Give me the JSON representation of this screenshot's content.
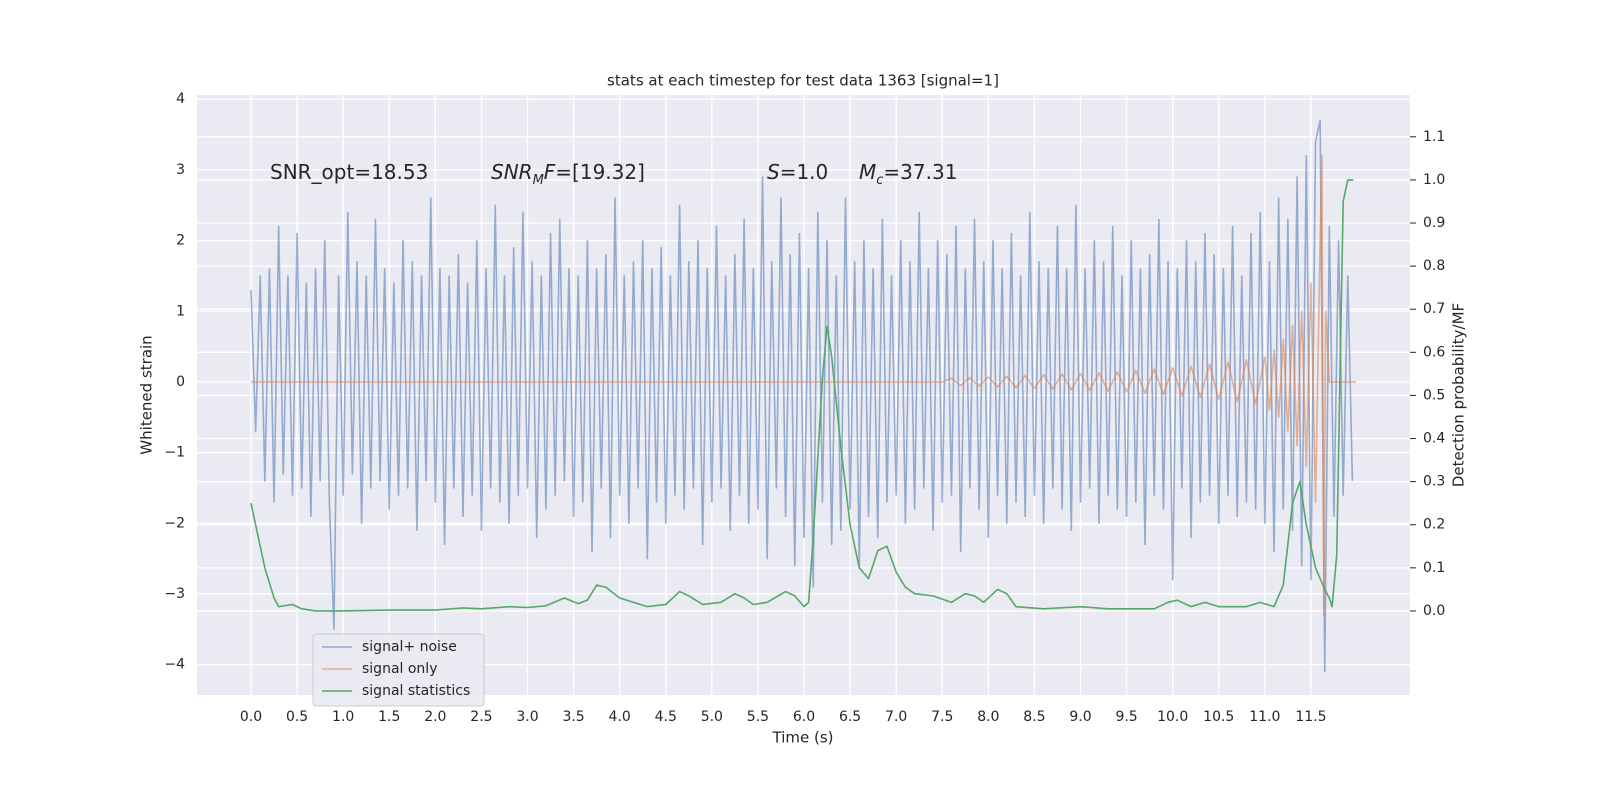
{
  "chart_data": {
    "type": "line",
    "title": "stats at each timestep for test data 1363 [signal=1]",
    "xlabel": "Time (s)",
    "ylabel": "Whitened strain",
    "y2label": "Detection probability/MF",
    "xlim": [
      -0.586,
      12.575
    ],
    "ylim": [
      -4.43,
      4.06
    ],
    "y2lim": [
      -0.195,
      1.197
    ],
    "grid": true,
    "legend": "lower left",
    "xticks": [
      {
        "value": 0,
        "label": "0.0"
      },
      0.5,
      {
        "value": 1,
        "label": "1.0"
      },
      1.5,
      {
        "value": 2,
        "label": "2.0"
      },
      2.5,
      {
        "value": 3,
        "label": "3.0"
      },
      3.5,
      {
        "value": 4,
        "label": "4.0"
      },
      4.5,
      {
        "value": 5,
        "label": "5.0"
      },
      5.5,
      {
        "value": 6,
        "label": "6.0"
      },
      6.5,
      {
        "value": 7,
        "label": "7.0"
      },
      7.5,
      {
        "value": 8,
        "label": "8.0"
      },
      8.5,
      {
        "value": 9,
        "label": "9.0"
      },
      9.5,
      {
        "value": 10,
        "label": "10.0"
      },
      10.5,
      {
        "value": 11,
        "label": "11.0"
      },
      11.5
    ],
    "yticks": [
      {
        "value": -4,
        "label": "−4"
      },
      {
        "value": -3,
        "label": "−3"
      },
      {
        "value": -2,
        "label": "−2"
      },
      {
        "value": -1,
        "label": "−1"
      },
      0,
      1,
      2,
      3,
      4
    ],
    "y2ticks": [
      {
        "value": 0,
        "label": "0.0"
      },
      0.1,
      0.2,
      0.3,
      0.4,
      0.5,
      0.6,
      0.7,
      0.8,
      0.9,
      {
        "value": 1,
        "label": "1.0"
      },
      1.1
    ],
    "annotations": [
      [
        {
          "text": "SNR_opt=18.53"
        }
      ],
      [
        {
          "text": "SNR",
          "italic": true
        },
        {
          "text": "M",
          "italic": true,
          "sub": true
        },
        {
          "text": "F",
          "italic": true
        },
        {
          "text": "=[19.32]"
        }
      ],
      [
        {
          "text": "S",
          "italic": true
        },
        {
          "text": "=1.0"
        }
      ],
      [
        {
          "text": "M",
          "italic": true
        },
        {
          "text": "c",
          "italic": true,
          "sub": true
        },
        {
          "text": "=37.31"
        }
      ]
    ],
    "series": [
      {
        "name": "signal+ noise",
        "color": "#4c72b0",
        "alpha": 0.55,
        "x": [
          0,
          0.05,
          0.1,
          0.15,
          0.2,
          0.25,
          0.3,
          0.35,
          0.4,
          0.45,
          0.5,
          0.55,
          0.6,
          0.65,
          0.7,
          0.75,
          0.8,
          0.85,
          0.9,
          0.95,
          1,
          1.05,
          1.1,
          1.15,
          1.2,
          1.25,
          1.3,
          1.35,
          1.4,
          1.45,
          1.5,
          1.55,
          1.6,
          1.65,
          1.7,
          1.75,
          1.8,
          1.85,
          1.9,
          1.95,
          2,
          2.05,
          2.1,
          2.15,
          2.2,
          2.25,
          2.3,
          2.35,
          2.4,
          2.45,
          2.5,
          2.55,
          2.6,
          2.65,
          2.7,
          2.75,
          2.8,
          2.85,
          2.9,
          2.95,
          3,
          3.05,
          3.1,
          3.15,
          3.2,
          3.25,
          3.3,
          3.35,
          3.4,
          3.45,
          3.5,
          3.55,
          3.6,
          3.65,
          3.7,
          3.75,
          3.8,
          3.85,
          3.9,
          3.95,
          4,
          4.05,
          4.1,
          4.15,
          4.2,
          4.25,
          4.3,
          4.35,
          4.4,
          4.45,
          4.5,
          4.55,
          4.6,
          4.65,
          4.7,
          4.75,
          4.8,
          4.85,
          4.9,
          4.95,
          5,
          5.05,
          5.1,
          5.15,
          5.2,
          5.25,
          5.3,
          5.35,
          5.4,
          5.45,
          5.5,
          5.55,
          5.6,
          5.65,
          5.7,
          5.75,
          5.8,
          5.85,
          5.9,
          5.95,
          6,
          6.05,
          6.1,
          6.15,
          6.2,
          6.25,
          6.3,
          6.35,
          6.4,
          6.45,
          6.5,
          6.55,
          6.6,
          6.65,
          6.7,
          6.75,
          6.8,
          6.85,
          6.9,
          6.95,
          7,
          7.05,
          7.1,
          7.15,
          7.2,
          7.25,
          7.3,
          7.35,
          7.4,
          7.45,
          7.5,
          7.55,
          7.6,
          7.65,
          7.7,
          7.75,
          7.8,
          7.85,
          7.9,
          7.95,
          8,
          8.05,
          8.1,
          8.15,
          8.2,
          8.25,
          8.3,
          8.35,
          8.4,
          8.45,
          8.5,
          8.55,
          8.6,
          8.65,
          8.7,
          8.75,
          8.8,
          8.85,
          8.9,
          8.95,
          9,
          9.05,
          9.1,
          9.15,
          9.2,
          9.25,
          9.3,
          9.35,
          9.4,
          9.45,
          9.5,
          9.55,
          9.6,
          9.65,
          9.7,
          9.75,
          9.8,
          9.85,
          9.9,
          9.95,
          10,
          10.05,
          10.1,
          10.15,
          10.2,
          10.25,
          10.3,
          10.35,
          10.4,
          10.45,
          10.5,
          10.55,
          10.6,
          10.65,
          10.7,
          10.75,
          10.8,
          10.85,
          10.9,
          10.95,
          11,
          11.05,
          11.1,
          11.15,
          11.2,
          11.25,
          11.3,
          11.35,
          11.4,
          11.45,
          11.5,
          11.55,
          11.6,
          11.65,
          11.7,
          11.75,
          11.8,
          11.85,
          11.9,
          11.95
        ],
        "values": [
          1.3,
          -0.7,
          1.5,
          -1.4,
          1.6,
          -1.7,
          2.2,
          -1.3,
          1.5,
          -1.6,
          2.1,
          -1.5,
          1.4,
          -1.9,
          1.6,
          -1.4,
          2.0,
          -1.7,
          -3.5,
          1.5,
          -1.6,
          2.4,
          -1.3,
          1.7,
          -2.0,
          1.5,
          -1.5,
          2.3,
          -1.4,
          1.6,
          -1.8,
          1.4,
          -1.6,
          2.0,
          -1.5,
          1.7,
          -2.1,
          1.5,
          -1.4,
          2.6,
          -1.7,
          1.6,
          -2.3,
          1.5,
          -1.5,
          1.8,
          -1.9,
          1.4,
          -1.6,
          2.0,
          -2.1,
          1.6,
          -1.5,
          2.5,
          -1.7,
          1.5,
          -2.0,
          1.9,
          -1.6,
          2.4,
          -1.5,
          1.7,
          -2.2,
          1.5,
          -1.8,
          2.1,
          -1.6,
          2.3,
          -1.4,
          1.6,
          -1.9,
          1.5,
          -1.7,
          2.0,
          -2.4,
          1.6,
          -1.5,
          1.8,
          -2.2,
          2.6,
          -1.6,
          1.5,
          -2.0,
          1.7,
          -1.5,
          2.0,
          -2.5,
          1.6,
          -1.7,
          1.9,
          -2.0,
          1.5,
          -1.6,
          2.5,
          -1.8,
          1.7,
          -1.5,
          2.0,
          -2.3,
          1.6,
          -1.7,
          2.2,
          -1.5,
          1.5,
          -2.1,
          1.8,
          -1.6,
          2.3,
          -2.0,
          1.6,
          -1.8,
          2.9,
          -2.5,
          1.7,
          -1.5,
          2.6,
          -1.9,
          1.8,
          -2.6,
          2.1,
          -2.2,
          1.6,
          -2.9,
          2.4,
          -1.7,
          2.0,
          -2.3,
          1.5,
          -2.1,
          2.6,
          -1.8,
          1.7,
          -2.6,
          2.0,
          -1.9,
          1.6,
          -2.2,
          2.3,
          -1.7,
          1.5,
          -1.6,
          2.0,
          -2.0,
          1.7,
          -1.8,
          2.4,
          -1.5,
          1.6,
          -2.1,
          2.0,
          -1.7,
          1.8,
          -1.6,
          2.2,
          -2.4,
          1.6,
          -1.5,
          2.3,
          -1.8,
          1.7,
          -2.2,
          2.0,
          -1.6,
          1.6,
          -2.0,
          2.1,
          -1.7,
          1.5,
          -1.9,
          2.4,
          -1.6,
          1.7,
          -2.0,
          1.6,
          -1.5,
          2.2,
          -1.8,
          1.6,
          -2.1,
          2.5,
          -1.7,
          1.6,
          -1.5,
          2.0,
          -2.0,
          1.7,
          -1.6,
          2.2,
          -1.8,
          1.5,
          -1.9,
          2.0,
          -1.7,
          1.6,
          -2.3,
          1.8,
          -1.6,
          2.3,
          -1.8,
          1.7,
          -2.8,
          1.6,
          -1.5,
          2.0,
          -2.2,
          1.7,
          -1.7,
          2.1,
          -1.6,
          1.8,
          -2.0,
          1.6,
          -1.6,
          2.2,
          -1.9,
          1.5,
          -1.7,
          2.1,
          -1.8,
          2.4,
          -2.0,
          1.7,
          -2.4,
          2.6,
          -1.8,
          2.3,
          -2.1,
          2.9,
          -2.6,
          3.2,
          -2.8,
          3.4,
          3.7,
          -4.1,
          2.2,
          -1.9,
          2.0,
          -1.6,
          1.5,
          -1.4
        ]
      },
      {
        "name": "signal only",
        "color": "#dd8452",
        "alpha": 0.6,
        "x": [
          0,
          7.5,
          7.6,
          7.7,
          7.8,
          7.9,
          8,
          8.1,
          8.2,
          8.3,
          8.4,
          8.5,
          8.6,
          8.7,
          8.8,
          8.9,
          9,
          9.1,
          9.2,
          9.3,
          9.4,
          9.5,
          9.6,
          9.7,
          9.8,
          9.9,
          10,
          10.1,
          10.2,
          10.3,
          10.4,
          10.5,
          10.6,
          10.7,
          10.8,
          10.9,
          11,
          11.05,
          11.1,
          11.15,
          11.2,
          11.25,
          11.3,
          11.35,
          11.4,
          11.45,
          11.5,
          11.55,
          11.6,
          11.62,
          11.64,
          11.66,
          11.7,
          11.99
        ],
        "values": [
          0,
          0,
          0.05,
          -0.05,
          0.06,
          -0.06,
          0.07,
          -0.07,
          0.08,
          -0.08,
          0.09,
          -0.09,
          0.1,
          -0.1,
          0.11,
          -0.11,
          0.12,
          -0.12,
          0.13,
          -0.13,
          0.14,
          -0.14,
          0.16,
          -0.16,
          0.18,
          -0.18,
          0.2,
          -0.2,
          0.22,
          -0.22,
          0.25,
          -0.25,
          0.28,
          -0.28,
          0.31,
          -0.31,
          0.35,
          -0.4,
          0.45,
          -0.5,
          0.6,
          -0.7,
          0.8,
          -0.9,
          1.0,
          -1.2,
          1.4,
          -1.7,
          2.0,
          3.2,
          -3.3,
          1.0,
          0,
          0
        ]
      },
      {
        "name": "signal statistics",
        "color": "#55a868",
        "alpha": 1,
        "axis": "y2",
        "x": [
          0,
          0.05,
          0.15,
          0.25,
          0.3,
          0.45,
          0.55,
          0.7,
          1,
          1.5,
          2,
          2.3,
          2.5,
          2.8,
          3,
          3.2,
          3.4,
          3.55,
          3.65,
          3.75,
          3.85,
          4,
          4.3,
          4.5,
          4.65,
          4.75,
          4.9,
          5.1,
          5.25,
          5.35,
          5.45,
          5.6,
          5.8,
          5.9,
          6,
          6.05,
          6.1,
          6.2,
          6.25,
          6.3,
          6.4,
          6.5,
          6.6,
          6.7,
          6.8,
          6.9,
          7,
          7.1,
          7.2,
          7.4,
          7.6,
          7.75,
          7.85,
          7.95,
          8.1,
          8.2,
          8.3,
          8.6,
          9,
          9.3,
          9.8,
          9.95,
          10.05,
          10.2,
          10.35,
          10.5,
          10.8,
          10.95,
          11.1,
          11.2,
          11.3,
          11.38,
          11.45,
          11.55,
          11.65,
          11.7,
          11.73,
          11.78,
          11.85,
          11.9,
          11.96
        ],
        "values": [
          0.25,
          0.2,
          0.1,
          0.03,
          0.01,
          0.015,
          0.005,
          0,
          0,
          0.002,
          0.002,
          0.007,
          0.005,
          0.01,
          0.008,
          0.012,
          0.03,
          0.017,
          0.025,
          0.06,
          0.055,
          0.03,
          0.01,
          0.015,
          0.045,
          0.035,
          0.015,
          0.02,
          0.04,
          0.03,
          0.015,
          0.02,
          0.045,
          0.035,
          0.01,
          0.02,
          0.17,
          0.54,
          0.66,
          0.59,
          0.38,
          0.2,
          0.1,
          0.075,
          0.14,
          0.15,
          0.09,
          0.055,
          0.04,
          0.035,
          0.02,
          0.04,
          0.035,
          0.02,
          0.05,
          0.04,
          0.01,
          0.005,
          0.01,
          0.005,
          0.005,
          0.02,
          0.025,
          0.01,
          0.02,
          0.01,
          0.01,
          0.02,
          0.01,
          0.06,
          0.25,
          0.3,
          0.2,
          0.1,
          0.05,
          0.03,
          0.01,
          0.13,
          0.95,
          1.0,
          1.0
        ]
      }
    ]
  }
}
